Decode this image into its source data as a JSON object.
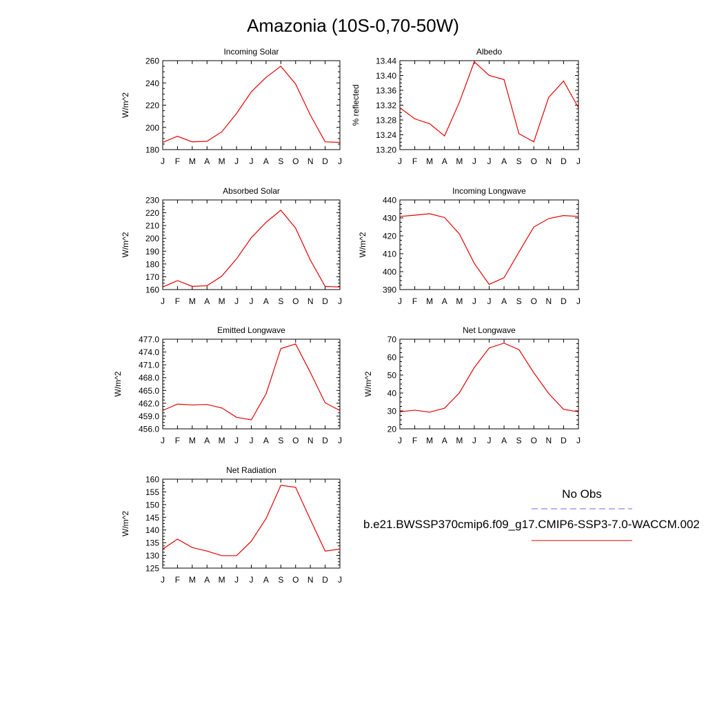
{
  "title": "Amazonia (10S-0,70-50W)",
  "legend": {
    "obs_label": "No Obs",
    "model_label": "b.e21.BWSSP370cmip6.f09_g17.CMIP6-SSP3-7.0-WACCM.002",
    "obs_color": "#6a6adf",
    "model_color": "#e00000"
  },
  "chart_data": [
    {
      "type": "line",
      "title": "Incoming Solar",
      "ylabel": "W/m^2",
      "categories": [
        "J",
        "F",
        "M",
        "A",
        "M",
        "J",
        "J",
        "A",
        "S",
        "O",
        "N",
        "D",
        "J"
      ],
      "ylim": [
        180,
        260
      ],
      "yticks": [
        180,
        200,
        220,
        240,
        260
      ],
      "ytick_labels": [
        "180",
        "200",
        "220",
        "240",
        "260"
      ],
      "series": [
        {
          "values": [
            186.5,
            192.0,
            187.0,
            187.5,
            196.0,
            212.5,
            232.0,
            245.0,
            255.0,
            239.0,
            211.0,
            187.0,
            186.5
          ]
        }
      ]
    },
    {
      "type": "line",
      "title": "Albedo",
      "ylabel": "% reflected",
      "categories": [
        "J",
        "F",
        "M",
        "A",
        "M",
        "J",
        "J",
        "A",
        "S",
        "O",
        "N",
        "D",
        "J"
      ],
      "ylim": [
        13.2,
        13.44
      ],
      "yticks": [
        13.2,
        13.24,
        13.28,
        13.32,
        13.36,
        13.4,
        13.44
      ],
      "ytick_labels": [
        "13.20",
        "13.24",
        "13.28",
        "13.32",
        "13.36",
        "13.40",
        "13.44"
      ],
      "series": [
        {
          "values": [
            13.313,
            13.283,
            13.27,
            13.237,
            13.328,
            13.437,
            13.4,
            13.389,
            13.243,
            13.221,
            13.341,
            13.385,
            13.313
          ]
        }
      ]
    },
    {
      "type": "line",
      "title": "Absorbed Solar",
      "ylabel": "W/m^2",
      "categories": [
        "J",
        "F",
        "M",
        "A",
        "M",
        "J",
        "J",
        "A",
        "S",
        "O",
        "N",
        "D",
        "J"
      ],
      "ylim": [
        160,
        230
      ],
      "yticks": [
        160,
        170,
        180,
        190,
        200,
        210,
        220,
        230
      ],
      "ytick_labels": [
        "160",
        "170",
        "180",
        "190",
        "200",
        "210",
        "220",
        "230"
      ],
      "series": [
        {
          "values": [
            162.0,
            167.0,
            162.5,
            163.0,
            170.5,
            184.0,
            200.5,
            212.5,
            222.0,
            208.0,
            183.0,
            162.5,
            162.0
          ]
        }
      ]
    },
    {
      "type": "line",
      "title": "Incoming Longwave",
      "ylabel": "W/m^2",
      "categories": [
        "J",
        "F",
        "M",
        "A",
        "M",
        "J",
        "J",
        "A",
        "S",
        "O",
        "N",
        "D",
        "J"
      ],
      "ylim": [
        390,
        440
      ],
      "yticks": [
        390,
        400,
        410,
        420,
        430,
        440
      ],
      "ytick_labels": [
        "390",
        "400",
        "410",
        "420",
        "430",
        "440"
      ],
      "series": [
        {
          "values": [
            430.8,
            431.5,
            432.3,
            430.2,
            421.0,
            404.6,
            392.9,
            396.6,
            410.9,
            424.9,
            429.6,
            431.3,
            430.8
          ]
        }
      ]
    },
    {
      "type": "line",
      "title": "Emitted Longwave",
      "ylabel": "W/m^2",
      "categories": [
        "J",
        "F",
        "M",
        "A",
        "M",
        "J",
        "J",
        "A",
        "S",
        "O",
        "N",
        "D",
        "J"
      ],
      "ylim": [
        456.0,
        477.0
      ],
      "yticks": [
        456,
        459,
        462,
        465,
        468,
        471,
        474,
        477
      ],
      "ytick_labels": [
        "456.0",
        "459.0",
        "462.0",
        "465.0",
        "468.0",
        "471.0",
        "474.0",
        "477.0"
      ],
      "series": [
        {
          "values": [
            460.3,
            461.8,
            461.6,
            461.7,
            460.9,
            458.7,
            458.1,
            464.2,
            474.8,
            475.9,
            469.2,
            462.1,
            460.3
          ]
        }
      ]
    },
    {
      "type": "line",
      "title": "Net Longwave",
      "ylabel": "W/m^2",
      "categories": [
        "J",
        "F",
        "M",
        "A",
        "M",
        "J",
        "J",
        "A",
        "S",
        "O",
        "N",
        "D",
        "J"
      ],
      "ylim": [
        20,
        70
      ],
      "yticks": [
        20,
        30,
        40,
        50,
        60,
        70
      ],
      "ytick_labels": [
        "20",
        "30",
        "40",
        "50",
        "60",
        "70"
      ],
      "series": [
        {
          "values": [
            29.5,
            30.4,
            29.3,
            31.5,
            40.1,
            54.2,
            65.1,
            67.8,
            64.2,
            51.3,
            39.7,
            30.9,
            29.5
          ]
        }
      ]
    },
    {
      "type": "line",
      "title": "Net Radiation",
      "ylabel": "W/m^2",
      "categories": [
        "J",
        "F",
        "M",
        "A",
        "M",
        "J",
        "J",
        "A",
        "S",
        "O",
        "N",
        "D",
        "J"
      ],
      "ylim": [
        125,
        160
      ],
      "yticks": [
        125,
        130,
        135,
        140,
        145,
        150,
        155,
        160
      ],
      "ytick_labels": [
        "125",
        "130",
        "135",
        "140",
        "145",
        "150",
        "155",
        "160"
      ],
      "series": [
        {
          "values": [
            132.5,
            136.4,
            133.1,
            131.7,
            129.9,
            129.9,
            135.6,
            144.5,
            157.6,
            156.8,
            144.1,
            131.7,
            132.5
          ]
        }
      ]
    }
  ]
}
